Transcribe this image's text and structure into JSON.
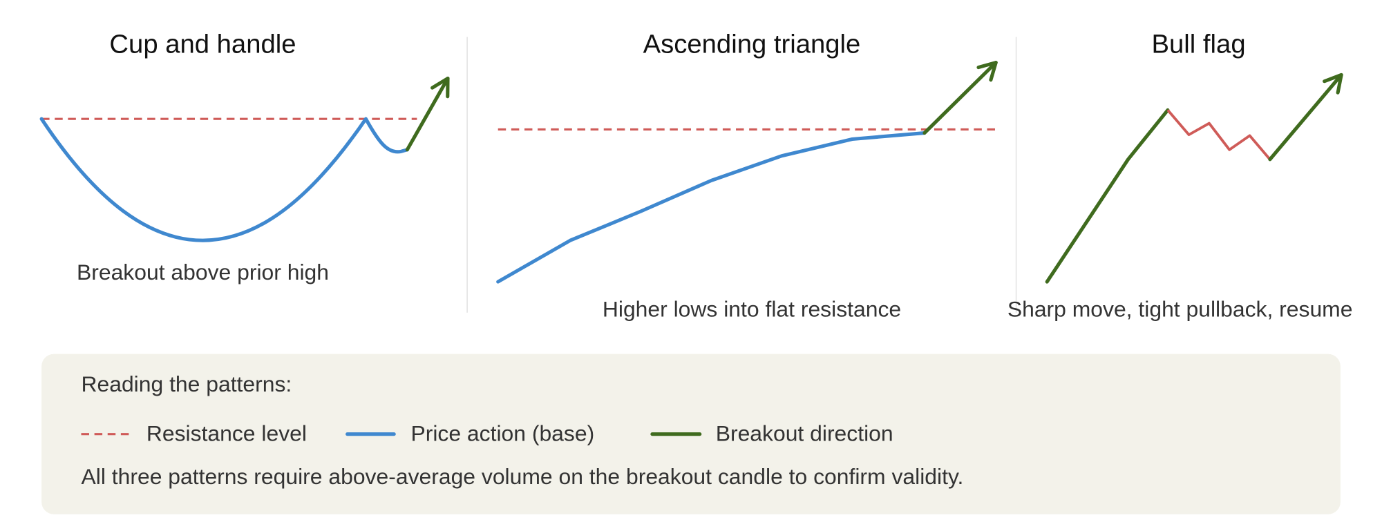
{
  "panels": [
    {
      "title": "Cup and handle",
      "caption": "Breakout above prior high"
    },
    {
      "title": "Ascending triangle",
      "caption": "Higher lows into flat resistance"
    },
    {
      "title": "Bull flag",
      "caption": "Sharp move, tight pullback, resume"
    }
  ],
  "legend": {
    "heading": "Reading the patterns:",
    "items": [
      "Resistance level",
      "Price action (base)",
      "Breakout direction"
    ],
    "note": "All three patterns require above-average volume on the breakout candle to confirm validity."
  }
}
